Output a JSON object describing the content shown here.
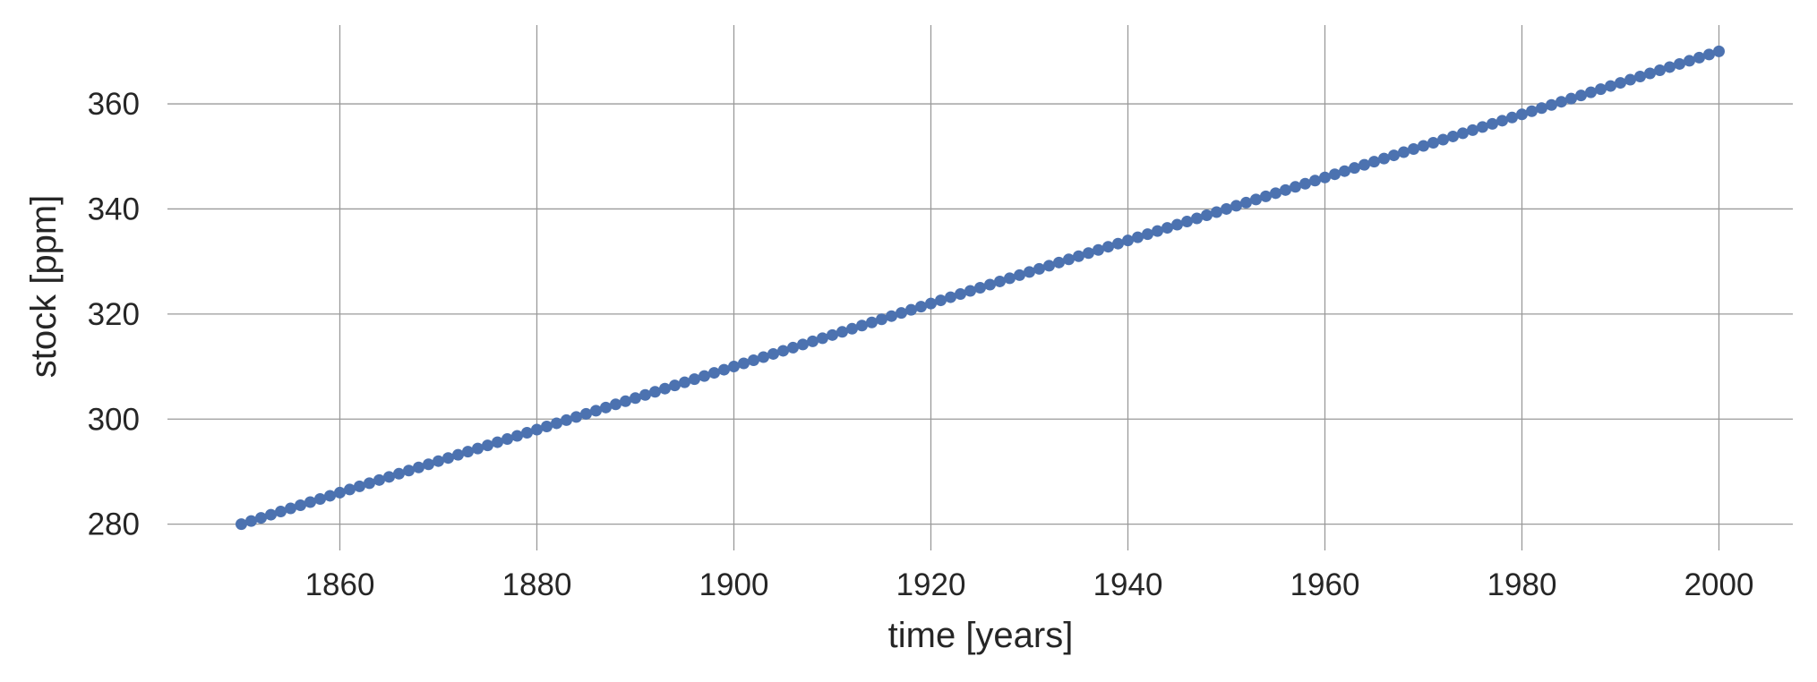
{
  "chart_data": {
    "type": "scatter",
    "title": "",
    "xlabel": "time [years]",
    "ylabel": "stock [ppm]",
    "xlim": [
      1842.5,
      2007.5
    ],
    "ylim": [
      275,
      375
    ],
    "xticks": [
      1860,
      1880,
      1900,
      1920,
      1940,
      1960,
      1980,
      2000
    ],
    "yticks": [
      280,
      300,
      320,
      340,
      360
    ],
    "grid": true,
    "legend": "none",
    "series": [
      {
        "color": "#4c72b0",
        "marker": "circle",
        "x_start": 1850,
        "x_end": 2000,
        "x_step": 1,
        "y_start": 280,
        "y_end": 370,
        "points": [
          [
            1850,
            280
          ],
          [
            1880,
            298
          ],
          [
            1900,
            310
          ],
          [
            1920,
            322
          ],
          [
            1940,
            334
          ],
          [
            1960,
            346
          ],
          [
            1980,
            358
          ],
          [
            2000,
            370
          ]
        ]
      }
    ]
  }
}
